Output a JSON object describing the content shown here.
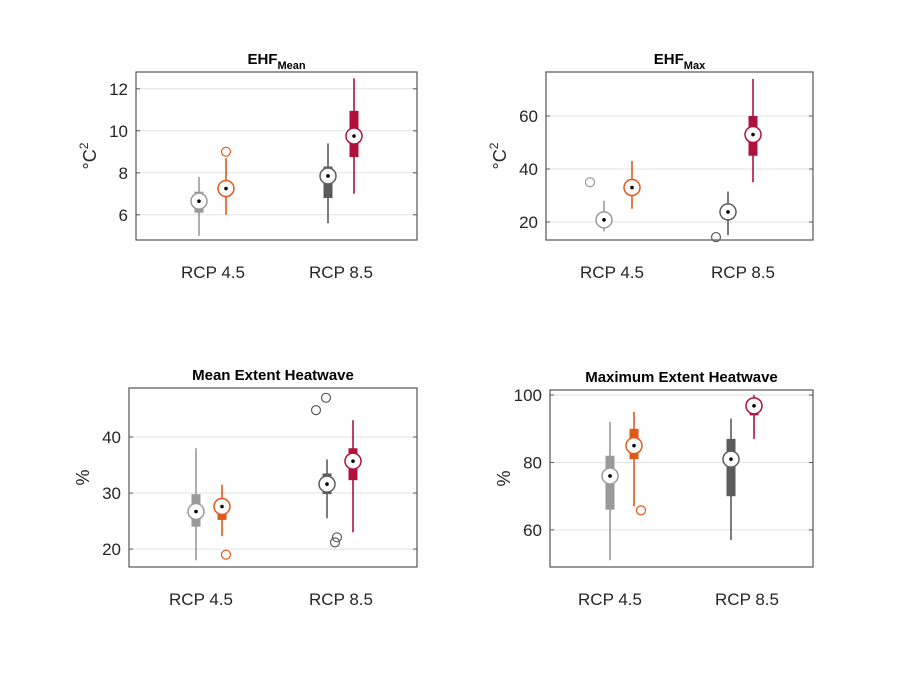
{
  "chart_data": [
    {
      "type": "box",
      "title": "EHF",
      "title_subscript": "Mean",
      "ylabel": "°C",
      "ylabel_superscript": "2",
      "categories": [
        "RCP 4.5",
        "RCP 8.5"
      ],
      "ylim": [
        4.8,
        12.8
      ],
      "yticks": [
        6,
        8,
        10,
        12
      ],
      "grid": true,
      "boxes": [
        {
          "category": "RCP 4.5",
          "color": "#9a9a9a",
          "whisker_low": 5.0,
          "q1": 6.1,
          "median": 6.65,
          "q3": 7.1,
          "whisker_high": 7.8,
          "outliers": []
        },
        {
          "category": "RCP 4.5",
          "color": "#e05a1a",
          "whisker_low": 6.0,
          "q1": 6.9,
          "median": 7.25,
          "q3": 7.6,
          "whisker_high": 8.7,
          "outliers": [
            9.0
          ]
        },
        {
          "category": "RCP 8.5",
          "color": "#5c5c5c",
          "whisker_low": 5.6,
          "q1": 6.8,
          "median": 7.85,
          "q3": 8.3,
          "whisker_high": 9.4,
          "outliers": []
        },
        {
          "category": "RCP 8.5",
          "color": "#b0113a",
          "whisker_low": 7.0,
          "q1": 8.75,
          "median": 9.75,
          "q3": 10.95,
          "whisker_high": 12.5,
          "outliers": []
        }
      ]
    },
    {
      "type": "box",
      "title": "EHF",
      "title_subscript": "Max",
      "ylabel": "°C",
      "ylabel_superscript": "2",
      "categories": [
        "RCP 4.5",
        "RCP 8.5"
      ],
      "ylim": [
        13.2,
        76.6
      ],
      "yticks": [
        20,
        40,
        60
      ],
      "grid": true,
      "boxes": [
        {
          "category": "RCP 4.5",
          "color": "#9a9a9a",
          "whisker_low": 16.5,
          "q1": 18.5,
          "median": 20.8,
          "q3": 23.5,
          "whisker_high": 28,
          "outliers": [
            35
          ]
        },
        {
          "category": "RCP 4.5",
          "color": "#e05a1a",
          "whisker_low": 25,
          "q1": 31,
          "median": 33,
          "q3": 36,
          "whisker_high": 43,
          "outliers": []
        },
        {
          "category": "RCP 8.5",
          "color": "#5c5c5c",
          "whisker_low": 15,
          "q1": 22,
          "median": 23.8,
          "q3": 24.5,
          "whisker_high": 31.5,
          "outliers": [
            14.3
          ]
        },
        {
          "category": "RCP 8.5",
          "color": "#b0113a",
          "whisker_low": 35,
          "q1": 45,
          "median": 53,
          "q3": 60,
          "whisker_high": 74,
          "outliers": []
        }
      ]
    },
    {
      "type": "box",
      "title": "Mean Extent Heatwave",
      "title_subscript": "",
      "ylabel": "%",
      "ylabel_superscript": "",
      "categories": [
        "RCP 4.5",
        "RCP 8.5"
      ],
      "ylim": [
        16.8,
        48.75
      ],
      "yticks": [
        20,
        30,
        40
      ],
      "grid": true,
      "boxes": [
        {
          "category": "RCP 4.5",
          "color": "#9a9a9a",
          "whisker_low": 18,
          "q1": 24,
          "median": 26.7,
          "q3": 29.8,
          "whisker_high": 38,
          "outliers": []
        },
        {
          "category": "RCP 4.5",
          "color": "#e05a1a",
          "whisker_low": 22.3,
          "q1": 25.2,
          "median": 27.6,
          "q3": 29,
          "whisker_high": 31.5,
          "outliers": [
            19
          ]
        },
        {
          "category": "RCP 8.5",
          "color": "#5c5c5c",
          "whisker_low": 25.5,
          "q1": 29.8,
          "median": 31.6,
          "q3": 33.5,
          "whisker_high": 36,
          "outliers": [
            44.8,
            47,
            21.2,
            22.1
          ]
        },
        {
          "category": "RCP 8.5",
          "color": "#b0113a",
          "whisker_low": 23,
          "q1": 32.3,
          "median": 35.7,
          "q3": 38,
          "whisker_high": 43,
          "outliers": []
        }
      ]
    },
    {
      "type": "box",
      "title": "Maximum Extent Heatwave",
      "title_subscript": "",
      "ylabel": "%",
      "ylabel_superscript": "",
      "categories": [
        "RCP 4.5",
        "RCP 8.5"
      ],
      "ylim": [
        49,
        101.5
      ],
      "yticks": [
        60,
        80,
        100
      ],
      "grid": true,
      "boxes": [
        {
          "category": "RCP 4.5",
          "color": "#9a9a9a",
          "whisker_low": 51,
          "q1": 66,
          "median": 76,
          "q3": 82,
          "whisker_high": 92,
          "outliers": []
        },
        {
          "category": "RCP 4.5",
          "color": "#e05a1a",
          "whisker_low": 67,
          "q1": 81,
          "median": 85,
          "q3": 90,
          "whisker_high": 95,
          "outliers": [
            65.8
          ]
        },
        {
          "category": "RCP 8.5",
          "color": "#5c5c5c",
          "whisker_low": 57,
          "q1": 70,
          "median": 81,
          "q3": 87,
          "whisker_high": 93,
          "outliers": []
        },
        {
          "category": "RCP 8.5",
          "color": "#b0113a",
          "whisker_low": 87,
          "q1": 94,
          "median": 96.8,
          "q3": 97,
          "whisker_high": 100,
          "outliers": []
        }
      ]
    }
  ]
}
